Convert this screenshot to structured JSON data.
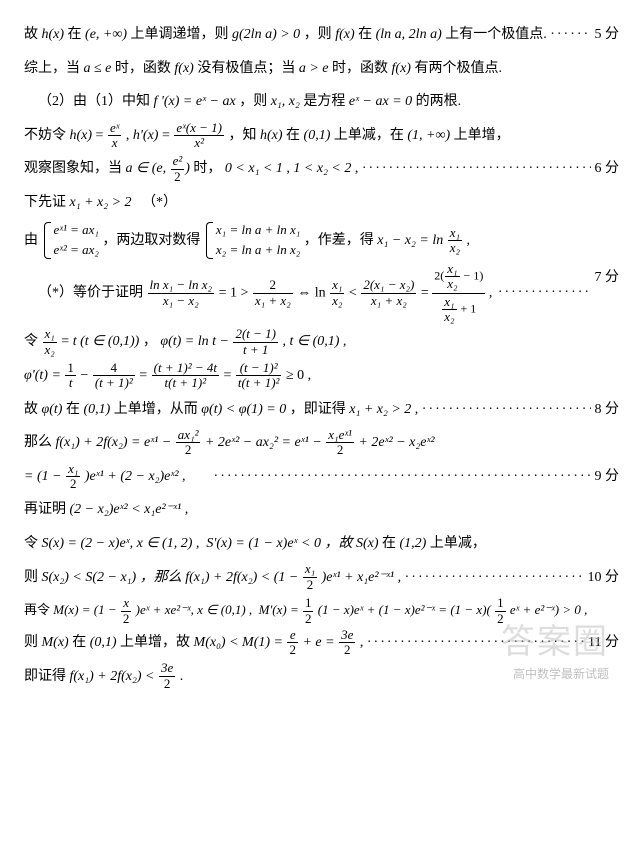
{
  "lines": {
    "l1a": "故",
    "l1b": "在",
    "l1c": "上单调递增，则",
    "l1d": "，则",
    "l1e": "在",
    "l1f": "上有一个极值点.",
    "hx": "h(x)",
    "einf": "(e, +∞)",
    "g2lna": "g(2ln a) > 0",
    "fx": "f(x)",
    "lna2lna": "(ln a, 2ln a)",
    "score5": "5 分",
    "l2a": "综上，当",
    "l2b": "时，函数",
    "l2c": "没有极值点；当",
    "l2d": "时，函数",
    "l2e": "有两个极值点.",
    "ale": "a ≤ e",
    "agt": "a > e",
    "l3a": "（2）由（1）中知",
    "l3b": "，则",
    "l3c": "是方程",
    "l3d": "的两根.",
    "fprime": "f '(x) = eˣ − ax",
    "x1x2": "x₁, x₂",
    "eqn": "eˣ − ax = 0",
    "l4a": "不妨令",
    "l4b": "，知",
    "l4c": "在",
    "l4d": "上单减，在",
    "l4e": "上单增，",
    "hx_def_num": "eˣ",
    "hx_def_den": "x",
    "hprime_num": "eˣ(x − 1)",
    "hprime_den": "x²",
    "int01": "(0,1)",
    "int1inf": "(1, +∞)",
    "l5a": "观察图象知，当",
    "l5b": "时，",
    "arange_num": "e²",
    "arange_den": "2",
    "x1range": "0 < x₁ < 1",
    "x2range": "1 < x₂ < 2",
    "score6": "6 分",
    "l6a": "下先证",
    "x1x2gt2": "x₁ + x₂ > 2",
    "star": "（*）",
    "l7a": "由",
    "l7b": "，两边取对数得",
    "l7c": "，作差，得",
    "br1a": "eˣ¹ = ax₁",
    "br1b": "eˣ² = ax₂",
    "br2a": "x₁ = ln a + ln x₁",
    "br2b": "x₂ = ln a + ln x₂",
    "diff": "x₁ − x₂ = ln",
    "diff_num": "x₁",
    "diff_den": "x₂",
    "l8a": "（*）等价于证明",
    "frA_num": "ln x₁ − ln x₂",
    "frA_den": "x₁ − x₂",
    "eq1": "= 1 >",
    "frB_num": "2",
    "frB_den": "x₁ + x₂",
    "iff": "⇔ ln",
    "lt": "<",
    "frC_num": "2(x₁ − x₂)",
    "frC_den": "x₁ + x₂",
    "eq2": "=",
    "tall_num_num": "x₁",
    "tall_num_den": "x₂",
    "tall_num_pre": "2(",
    "tall_num_post": " − 1)",
    "tall_den_post": " + 1",
    "score7": "7 分",
    "l9a": "令",
    "l9b": "=",
    "l9c": "，",
    "tdef": "t (t ∈ (0,1))",
    "phi_def": "φ(t) = ln t −",
    "phi_num": "2(t − 1)",
    "phi_den": "t + 1",
    "phi_dom": ", t ∈ (0,1) ,",
    "l10a": "φ'(t) =",
    "d1_num": "1",
    "d1_den": "t",
    "minus": "−",
    "d2_num": "4",
    "d2_den": "(t + 1)²",
    "d3_num": "(t + 1)² − 4t",
    "d3_den": "t(t + 1)²",
    "d4_num": "(t − 1)²",
    "d4_den": "t(t + 1)²",
    "ge0": "≥ 0 ,",
    "l11a": "故",
    "l11b": "在",
    "l11c": "上单增，从而",
    "l11d": "，即证得",
    "phit": "φ(t)",
    "phitlt": "φ(t) < φ(1) = 0",
    "score8": "8 分",
    "l12a": "那么",
    "f12": "f(x₁) + 2f(x₂) = eˣ¹ −",
    "f12a_num": "ax₁²",
    "f12a_den": "2",
    "f12b": "+ 2eˣ² − ax₂² = eˣ¹ −",
    "f12c_num": "x₁eˣ¹",
    "f12c_den": "2",
    "f12d": "+ 2eˣ² − x₂eˣ²",
    "l13a": "= (1 −",
    "l13_num": "x₁",
    "l13_den": "2",
    "l13b": ")eˣ¹ + (2 − x₂)eˣ² ,",
    "score9": "9 分",
    "l14a": "再证明",
    "l14": "(2 − x₂)eˣ² < x₁e²⁻ˣ¹ ,",
    "l15a": "令",
    "l15": "S(x) = (2 − x)eˣ, x ∈ (1, 2) ,",
    "l15b": "S'(x) = (1 − x)eˣ < 0 ，故",
    "l15c": "S(x)",
    "l15d": "在",
    "l15e": "(1,2)",
    "l15f": "上单减，",
    "l16a": "则",
    "l16": "S(x₂) < S(2 − x₁) ，那么",
    "l16b": "f(x₁) + 2f(x₂) < (1 −",
    "l16_num": "x₁",
    "l16_den": "2",
    "l16c": ")eˣ¹ + x₁e²⁻ˣ¹ ,",
    "score10": "10 分",
    "l17a": "再令",
    "l17": "M(x) = (1 −",
    "l17_num": "x",
    "l17_den": "2",
    "l17b": ")eˣ + xe²⁻ˣ, x ∈ (0,1) ,",
    "l17c": "M'(x) =",
    "l17d_num": "1",
    "l17d_den": "2",
    "l17e": "(1 − x)eˣ + (1 − x)e²⁻ˣ = (1 − x)(",
    "l17f": "eˣ + e²⁻ˣ) > 0 ,",
    "l18a": "则",
    "l18": "M(x)",
    "l18b": "在",
    "l18c": "上单增，故",
    "l18d": "M(x₀) < M(1) =",
    "l18e_num": "e",
    "l18e_den": "2",
    "l18f": "+ e =",
    "l18g_num": "3e",
    "l18g_den": "2",
    "l18h": " ,",
    "score11": "11 分",
    "l19a": "即证得",
    "l19": "f(x₁) + 2f(x₂) <",
    "l19_num": "3e",
    "l19_den": "2",
    "l19b": " .",
    "wm1": "答案圈",
    "wm2": "高中数学最新试题"
  }
}
